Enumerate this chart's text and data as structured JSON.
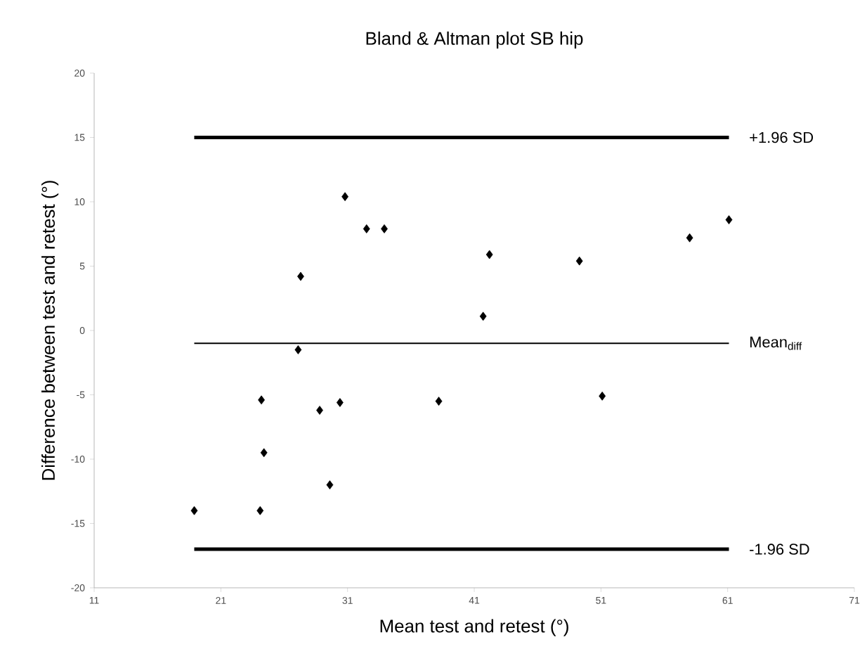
{
  "chart_data": {
    "type": "scatter",
    "title": "Bland & Altman plot SB hip",
    "xlabel": "Mean test and retest (°)",
    "ylabel": "Difference between test and retest (°)",
    "x": [
      18.9,
      24.1,
      24.4,
      24.2,
      27.3,
      27.1,
      28.8,
      29.6,
      30.4,
      30.8,
      32.5,
      33.9,
      38.2,
      41.7,
      42.2,
      49.3,
      51.1,
      58.0,
      61.1
    ],
    "values": [
      -14.0,
      -14.0,
      -9.5,
      -5.4,
      4.2,
      -1.5,
      -6.2,
      -12.0,
      -5.6,
      10.4,
      7.9,
      7.9,
      -5.5,
      1.1,
      5.9,
      5.4,
      -5.1,
      7.2,
      8.6
    ],
    "color": "#000000",
    "marker": "diamond",
    "xlim": [
      11,
      71
    ],
    "xticks": [
      11,
      21,
      31,
      41,
      51,
      61,
      71
    ],
    "ylim": [
      -20,
      20
    ],
    "yticks": [
      -20,
      -15,
      -10,
      -5,
      0,
      5,
      10,
      15,
      20
    ],
    "ref_lines": [
      {
        "axis": "y",
        "value": 15,
        "label": "+1.96 SD",
        "color": "#000000",
        "line_style": "solid"
      },
      {
        "axis": "y",
        "value": -1,
        "label": "Mean$_{diff}$",
        "color": "#000000",
        "line_style": "solid"
      },
      {
        "axis": "y",
        "value": -17,
        "label": "-1.96 SD",
        "color": "#000000",
        "line_style": "solid"
      }
    ],
    "grid": false
  }
}
